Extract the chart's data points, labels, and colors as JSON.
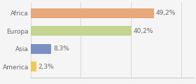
{
  "categories": [
    "Africa",
    "Europa",
    "Asia",
    "America"
  ],
  "values": [
    49.2,
    40.2,
    8.3,
    2.3
  ],
  "bar_colors": [
    "#e8a87c",
    "#c5d490",
    "#7b8fc2",
    "#f0c84e"
  ],
  "labels": [
    "49,2%",
    "40,2%",
    "8,3%",
    "2,3%"
  ],
  "background_color": "#f5f5f5",
  "xlim": [
    0,
    65
  ],
  "bar_height": 0.55,
  "label_fontsize": 6.5,
  "tick_fontsize": 6.5,
  "grid_ticks": [
    0,
    20,
    40,
    60
  ]
}
